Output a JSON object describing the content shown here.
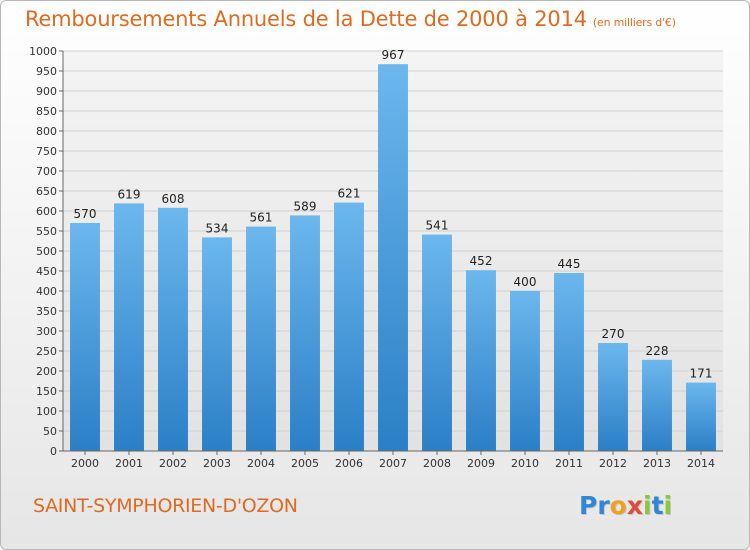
{
  "header": {
    "title": "Remboursements Annuels de la Dette de 2000 à 2014",
    "unit": "(en milliers d'€)"
  },
  "footer": {
    "city": "SAINT-SYMPHORIEN-D'OZON",
    "logo_text": "Proxiti",
    "logo_colors": [
      "#2f86d6",
      "#2f86d6",
      "#f0a020",
      "#e24a3b",
      "#8cc63f",
      "#2f86d6",
      "#8cc63f"
    ]
  },
  "colors": {
    "bar_top": "#6cb7ee",
    "bar_bottom": "#2a7fc6",
    "grid": "#d0d0d0",
    "axis": "#666666",
    "title": "#e06a20"
  },
  "chart_data": {
    "type": "bar",
    "title": "Remboursements Annuels de la Dette de 2000 à 2014",
    "subtitle": "(en milliers d'€)",
    "xlabel": "",
    "ylabel": "",
    "categories": [
      "2000",
      "2001",
      "2002",
      "2003",
      "2004",
      "2005",
      "2006",
      "2007",
      "2008",
      "2009",
      "2010",
      "2011",
      "2012",
      "2013",
      "2014"
    ],
    "values": [
      570,
      619,
      608,
      534,
      561,
      589,
      621,
      967,
      541,
      452,
      400,
      445,
      270,
      228,
      171
    ],
    "ylim": [
      0,
      1000
    ],
    "yticks": [
      0,
      50,
      100,
      150,
      200,
      250,
      300,
      350,
      400,
      450,
      500,
      550,
      600,
      650,
      700,
      750,
      800,
      850,
      900,
      950,
      1000
    ],
    "grid": true,
    "legend": "none"
  }
}
